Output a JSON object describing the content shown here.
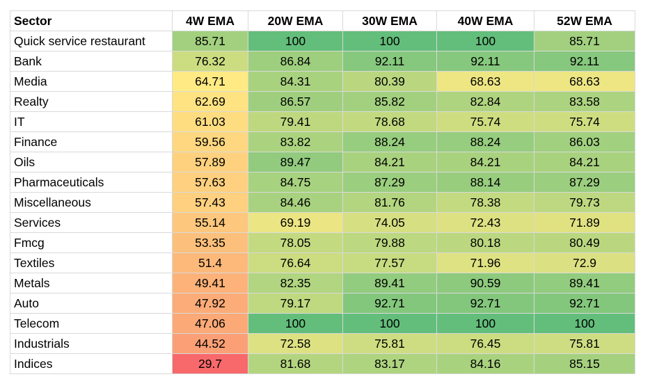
{
  "chart_data": {
    "type": "heatmap",
    "columns": [
      "Sector",
      "4W EMA",
      "20W EMA",
      "30W EMA",
      "40W EMA",
      "52W EMA"
    ],
    "rows": [
      {
        "sector": "Quick service restaurant",
        "values": [
          "85.71",
          "100",
          "100",
          "100",
          "85.71"
        ]
      },
      {
        "sector": "Bank",
        "values": [
          "76.32",
          "86.84",
          "92.11",
          "92.11",
          "92.11"
        ]
      },
      {
        "sector": "Media",
        "values": [
          "64.71",
          "84.31",
          "80.39",
          "68.63",
          "68.63"
        ]
      },
      {
        "sector": "Realty",
        "values": [
          "62.69",
          "86.57",
          "85.82",
          "82.84",
          "83.58"
        ]
      },
      {
        "sector": "IT",
        "values": [
          "61.03",
          "79.41",
          "78.68",
          "75.74",
          "75.74"
        ]
      },
      {
        "sector": "Finance",
        "values": [
          "59.56",
          "83.82",
          "88.24",
          "88.24",
          "86.03"
        ]
      },
      {
        "sector": "Oils",
        "values": [
          "57.89",
          "89.47",
          "84.21",
          "84.21",
          "84.21"
        ]
      },
      {
        "sector": "Pharmaceuticals",
        "values": [
          "57.63",
          "84.75",
          "87.29",
          "88.14",
          "87.29"
        ]
      },
      {
        "sector": "Miscellaneous",
        "values": [
          "57.43",
          "84.46",
          "81.76",
          "78.38",
          "79.73"
        ]
      },
      {
        "sector": "Services",
        "values": [
          "55.14",
          "69.19",
          "74.05",
          "72.43",
          "71.89"
        ]
      },
      {
        "sector": "Fmcg",
        "values": [
          "53.35",
          "78.05",
          "79.88",
          "80.18",
          "80.49"
        ]
      },
      {
        "sector": "Textiles",
        "values": [
          "51.4",
          "76.64",
          "77.57",
          "71.96",
          "72.9"
        ]
      },
      {
        "sector": "Metals",
        "values": [
          "49.41",
          "82.35",
          "89.41",
          "90.59",
          "89.41"
        ]
      },
      {
        "sector": "Auto",
        "values": [
          "47.92",
          "79.17",
          "92.71",
          "92.71",
          "92.71"
        ]
      },
      {
        "sector": "Telecom",
        "values": [
          "47.06",
          "100",
          "100",
          "100",
          "100"
        ]
      },
      {
        "sector": "Industrials",
        "values": [
          "44.52",
          "72.58",
          "75.81",
          "76.45",
          "75.81"
        ]
      },
      {
        "sector": "Indices",
        "values": [
          "29.7",
          "81.68",
          "83.17",
          "84.16",
          "85.15"
        ]
      }
    ],
    "color_scale": {
      "low": "#f8696b",
      "mid": "#ffeb84",
      "high": "#63be7b",
      "min": 29.7,
      "max": 100
    }
  }
}
